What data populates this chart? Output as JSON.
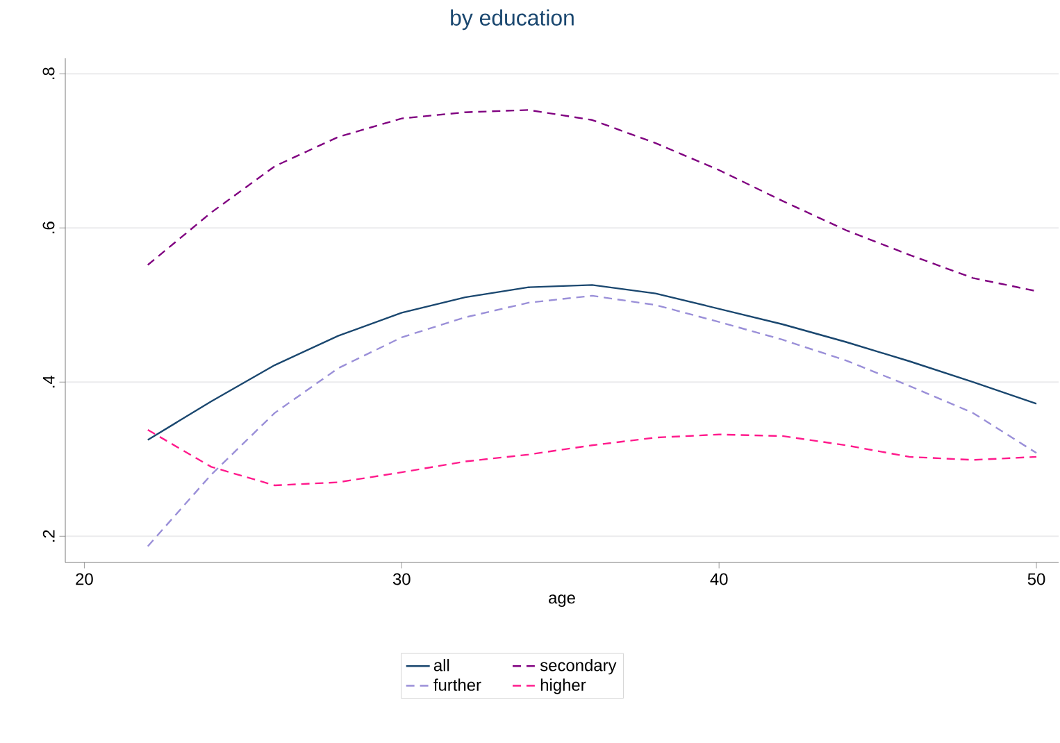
{
  "chart_data": {
    "type": "line",
    "title": "by education",
    "xlabel": "age",
    "xlim": [
      19.4,
      50.7
    ],
    "xticks": [
      20,
      30,
      40,
      50
    ],
    "ylim": [
      0.166,
      0.82
    ],
    "yticks": [
      {
        "value": 0.2,
        "label": ".2"
      },
      {
        "value": 0.4,
        "label": ".4"
      },
      {
        "value": 0.6,
        "label": ".6"
      },
      {
        "value": 0.8,
        "label": ".8"
      }
    ],
    "x": [
      22,
      24,
      26,
      28,
      30,
      32,
      34,
      36,
      38,
      40,
      42,
      44,
      46,
      48,
      50
    ],
    "grid": "y",
    "legend": "bottom",
    "marker": "none",
    "series": [
      {
        "name": "all",
        "color": "#1a476f",
        "line_style": "solid",
        "values": [
          0.325,
          0.375,
          0.422,
          0.46,
          0.49,
          0.51,
          0.523,
          0.526,
          0.515,
          0.495,
          0.475,
          0.452,
          0.427,
          0.4,
          0.372
        ]
      },
      {
        "name": "secondary",
        "color": "#800080",
        "line_style": "dashed",
        "values": [
          0.552,
          0.62,
          0.68,
          0.718,
          0.742,
          0.75,
          0.753,
          0.74,
          0.71,
          0.675,
          0.635,
          0.597,
          0.565,
          0.535,
          0.518
        ]
      },
      {
        "name": "further",
        "color": "#9a8fd8",
        "line_style": "dashed",
        "values": [
          0.187,
          0.28,
          0.36,
          0.418,
          0.458,
          0.484,
          0.503,
          0.512,
          0.5,
          0.478,
          0.455,
          0.428,
          0.395,
          0.36,
          0.308
        ]
      },
      {
        "name": "higher",
        "color": "#ff1a8c",
        "line_style": "dashed",
        "values": [
          0.338,
          0.29,
          0.266,
          0.27,
          0.283,
          0.297,
          0.306,
          0.318,
          0.328,
          0.332,
          0.33,
          0.318,
          0.303,
          0.299,
          0.303
        ]
      }
    ]
  }
}
